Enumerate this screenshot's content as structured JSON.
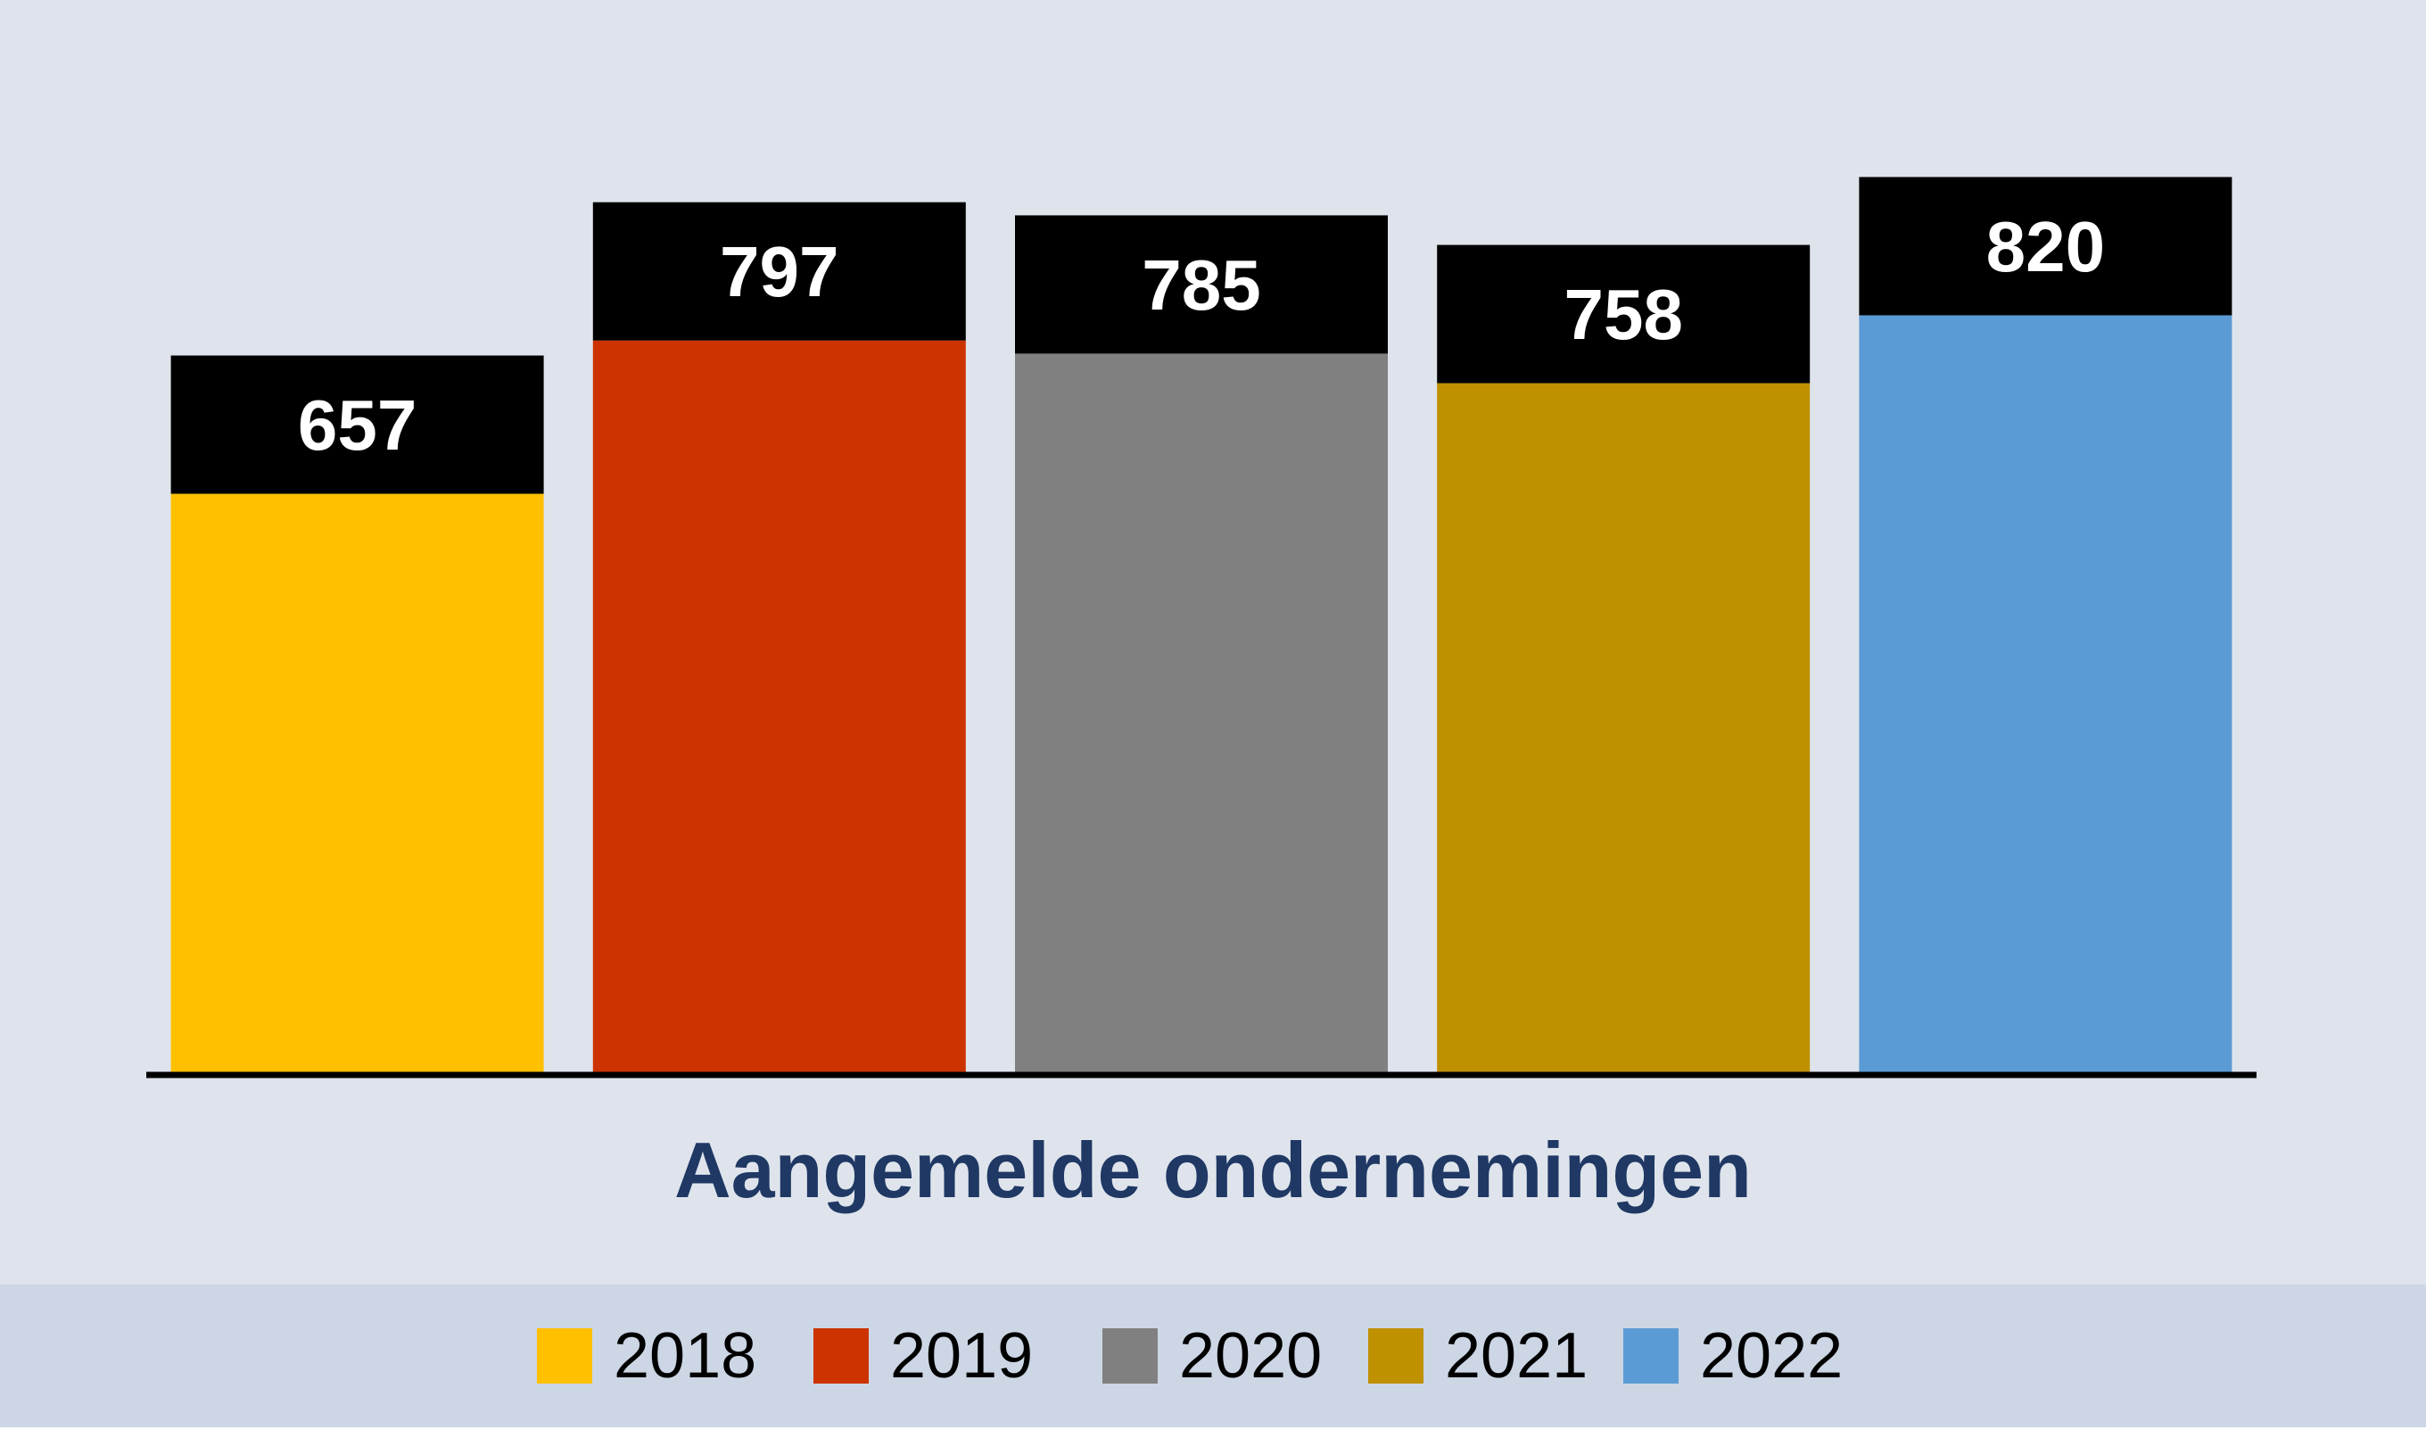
{
  "chart_data": {
    "type": "bar",
    "categories": [
      "2018",
      "2019",
      "2020",
      "2021",
      "2022"
    ],
    "values": [
      657,
      797,
      785,
      758,
      820
    ],
    "xlabel": "Aangemelde ondernemingen",
    "ylabel": "",
    "ylim": [
      0,
      1000
    ],
    "grid": false,
    "legend": "bottom",
    "colors": [
      "#ffc000",
      "#cc3300",
      "#808080",
      "#bf9000",
      "#5b9bd5"
    ],
    "label_box_color": "#000000"
  }
}
